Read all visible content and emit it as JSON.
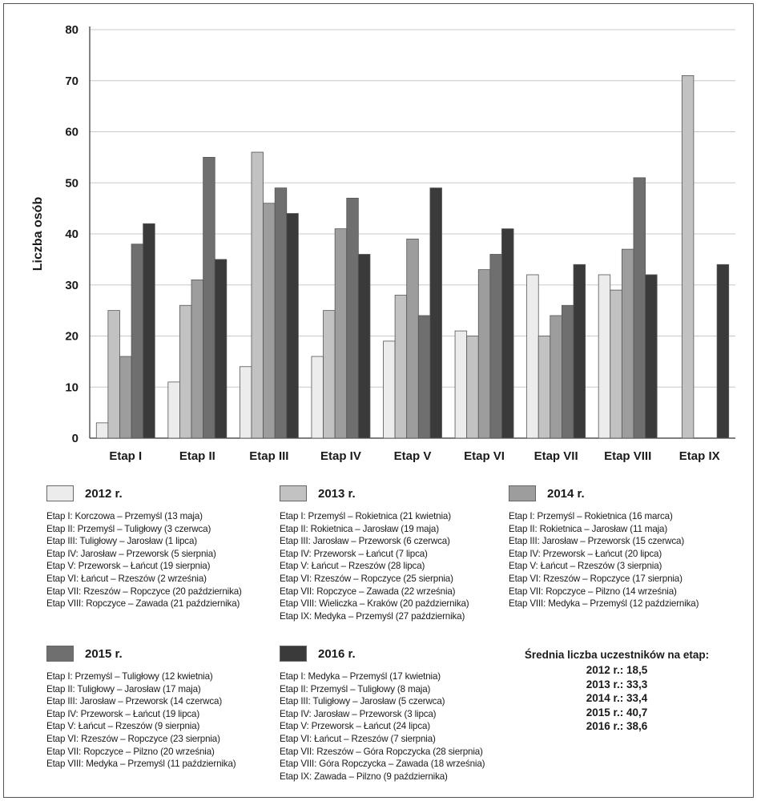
{
  "chart_data": {
    "type": "bar",
    "ylabel": "Liczba osób",
    "ylim": [
      0,
      80
    ],
    "yticks": [
      0,
      10,
      20,
      30,
      40,
      50,
      60,
      70,
      80
    ],
    "grid": true,
    "categories": [
      "Etap I",
      "Etap II",
      "Etap III",
      "Etap IV",
      "Etap V",
      "Etap VI",
      "Etap VII",
      "Etap VIII",
      "Etap IX"
    ],
    "series": [
      {
        "name": "2012 r.",
        "color": "#ececec",
        "values": [
          3,
          11,
          14,
          16,
          19,
          21,
          32,
          32,
          null
        ]
      },
      {
        "name": "2013 r.",
        "color": "#c2c2c2",
        "values": [
          25,
          26,
          56,
          25,
          28,
          20,
          20,
          29,
          71
        ]
      },
      {
        "name": "2014 r.",
        "color": "#9d9d9d",
        "values": [
          16,
          31,
          46,
          41,
          39,
          33,
          24,
          37,
          null
        ]
      },
      {
        "name": "2015 r.",
        "color": "#6f6f6f",
        "values": [
          38,
          55,
          49,
          47,
          24,
          36,
          26,
          51,
          null
        ]
      },
      {
        "name": "2016 r.",
        "color": "#3a3a3a",
        "values": [
          42,
          35,
          44,
          36,
          49,
          41,
          34,
          32,
          34
        ]
      }
    ]
  },
  "legend": [
    {
      "year": "2012 r.",
      "color": "#ececec",
      "items": [
        "Etap I: Korczowa – Przemyśl (13 maja)",
        "Etap II: Przemyśl – Tuligłowy (3 czerwca)",
        "Etap III: Tuligłowy – Jarosław (1 lipca)",
        "Etap IV: Jarosław – Przeworsk (5 sierpnia)",
        "Etap V: Przeworsk – Łańcut (19 sierpnia)",
        "Etap VI: Łańcut – Rzeszów (2 września)",
        "Etap VII: Rzeszów – Ropczyce (20 października)",
        "Etap VIII: Ropczyce – Zawada (21 października)"
      ]
    },
    {
      "year": "2013 r.",
      "color": "#c2c2c2",
      "items": [
        "Etap I: Przemyśl – Rokietnica (21 kwietnia)",
        "Etap II: Rokietnica – Jarosław (19 maja)",
        "Etap III: Jarosław – Przeworsk (6 czerwca)",
        "Etap IV: Przeworsk – Łańcut (7 lipca)",
        "Etap V: Łańcut – Rzeszów (28 lipca)",
        "Etap VI: Rzeszów – Ropczyce (25 sierpnia)",
        "Etap VII: Ropczyce – Zawada (22 września)",
        "Etap VIII: Wieliczka – Kraków (20 października)",
        "Etap IX: Medyka – Przemyśl (27 października)"
      ]
    },
    {
      "year": "2014 r.",
      "color": "#9d9d9d",
      "items": [
        "Etap I: Przemyśl – Rokietnica (16 marca)",
        "Etap II: Rokietnica – Jarosław (11 maja)",
        "Etap III: Jarosław – Przeworsk (15 czerwca)",
        "Etap IV: Przeworsk – Łańcut (20 lipca)",
        "Etap V: Łańcut – Rzeszów (3 sierpnia)",
        "Etap VI: Rzeszów – Ropczyce (17 sierpnia)",
        "Etap VII: Ropczyce – Pilzno (14 września)",
        "Etap VIII: Medyka – Przemyśl (12 października)"
      ]
    },
    {
      "year": "2015 r.",
      "color": "#6f6f6f",
      "items": [
        "Etap I: Przemyśl – Tuligłowy (12 kwietnia)",
        "Etap II: Tuligłowy – Jarosław (17 maja)",
        "Etap III: Jarosław – Przeworsk (14 czerwca)",
        "Etap IV: Przeworsk – Łańcut (19 lipca)",
        "Etap V: Łańcut – Rzeszów (9 sierpnia)",
        "Etap VI: Rzeszów – Ropczyce (23 sierpnia)",
        "Etap VII: Ropczyce – Pilzno (20 września)",
        "Etap VIII: Medyka – Przemyśl (11 października)"
      ]
    },
    {
      "year": "2016 r.",
      "color": "#3a3a3a",
      "items": [
        "Etap I: Medyka – Przemyśl (17 kwietnia)",
        "Etap II: Przemyśl – Tuligłowy (8 maja)",
        "Etap III: Tuligłowy – Jarosław (5 czerwca)",
        "Etap IV: Jarosław – Przeworsk (3 lipca)",
        "Etap V: Przeworsk – Łańcut (24 lipca)",
        "Etap VI: Łańcut – Rzeszów (7 sierpnia)",
        "Etap VII: Rzeszów – Góra Ropczycka (28 sierpnia)",
        "Etap VIII: Góra Ropczycka – Zawada (18 września)",
        "Etap IX: Zawada – Pilzno (9 października)"
      ]
    }
  ],
  "averages": {
    "title": "Średnia liczba uczestników na etap:",
    "rows": [
      "2012 r.: 18,5",
      "2013 r.: 33,3",
      "2014 r.: 33,4",
      "2015 r.: 40,7",
      "2016 r.:  38,6"
    ]
  }
}
